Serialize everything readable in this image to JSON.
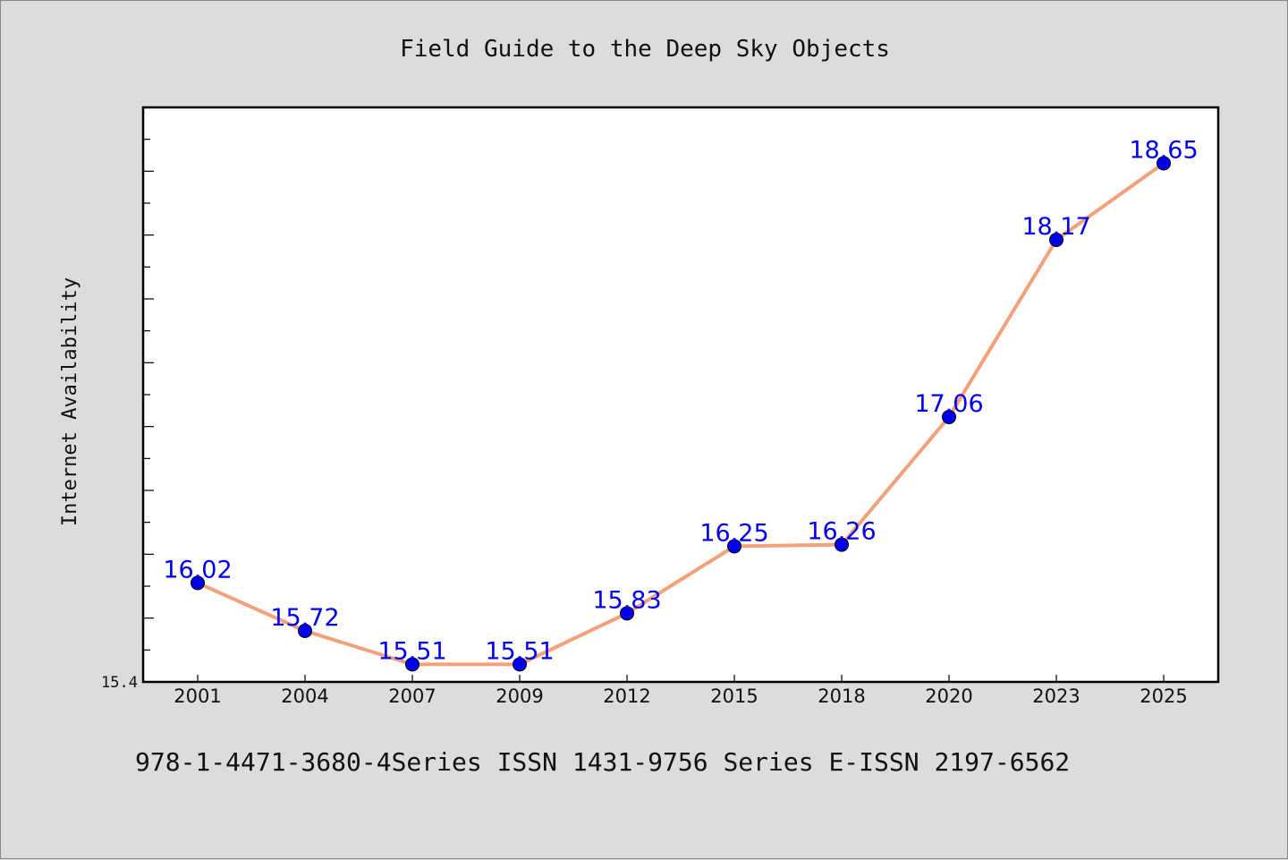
{
  "footer": "978-1-4471-3680-4Series ISSN 1431-9756 Series E-ISSN 2197-6562",
  "chart_data": {
    "type": "line",
    "title": "Field Guide to the Deep Sky Objects",
    "ylabel": "Internet Availability",
    "xlabel": "",
    "categories": [
      "2001",
      "2004",
      "2007",
      "2009",
      "2012",
      "2015",
      "2018",
      "2020",
      "2023",
      "2025"
    ],
    "values": [
      16.02,
      15.72,
      15.51,
      15.51,
      15.83,
      16.25,
      16.26,
      17.06,
      18.17,
      18.65
    ],
    "data_labels": [
      "16.02",
      "15.72",
      "15.51",
      "15.51",
      "15.83",
      "16.25",
      "16.26",
      "17.06",
      "18.17",
      "18.65"
    ],
    "ylim": [
      15.4,
      19.0
    ],
    "y_tick_labels": [
      "15.4"
    ],
    "grid": false,
    "line_color": "#f4a07a",
    "marker_color": "#0000ee",
    "label_color": "#0000ee"
  }
}
